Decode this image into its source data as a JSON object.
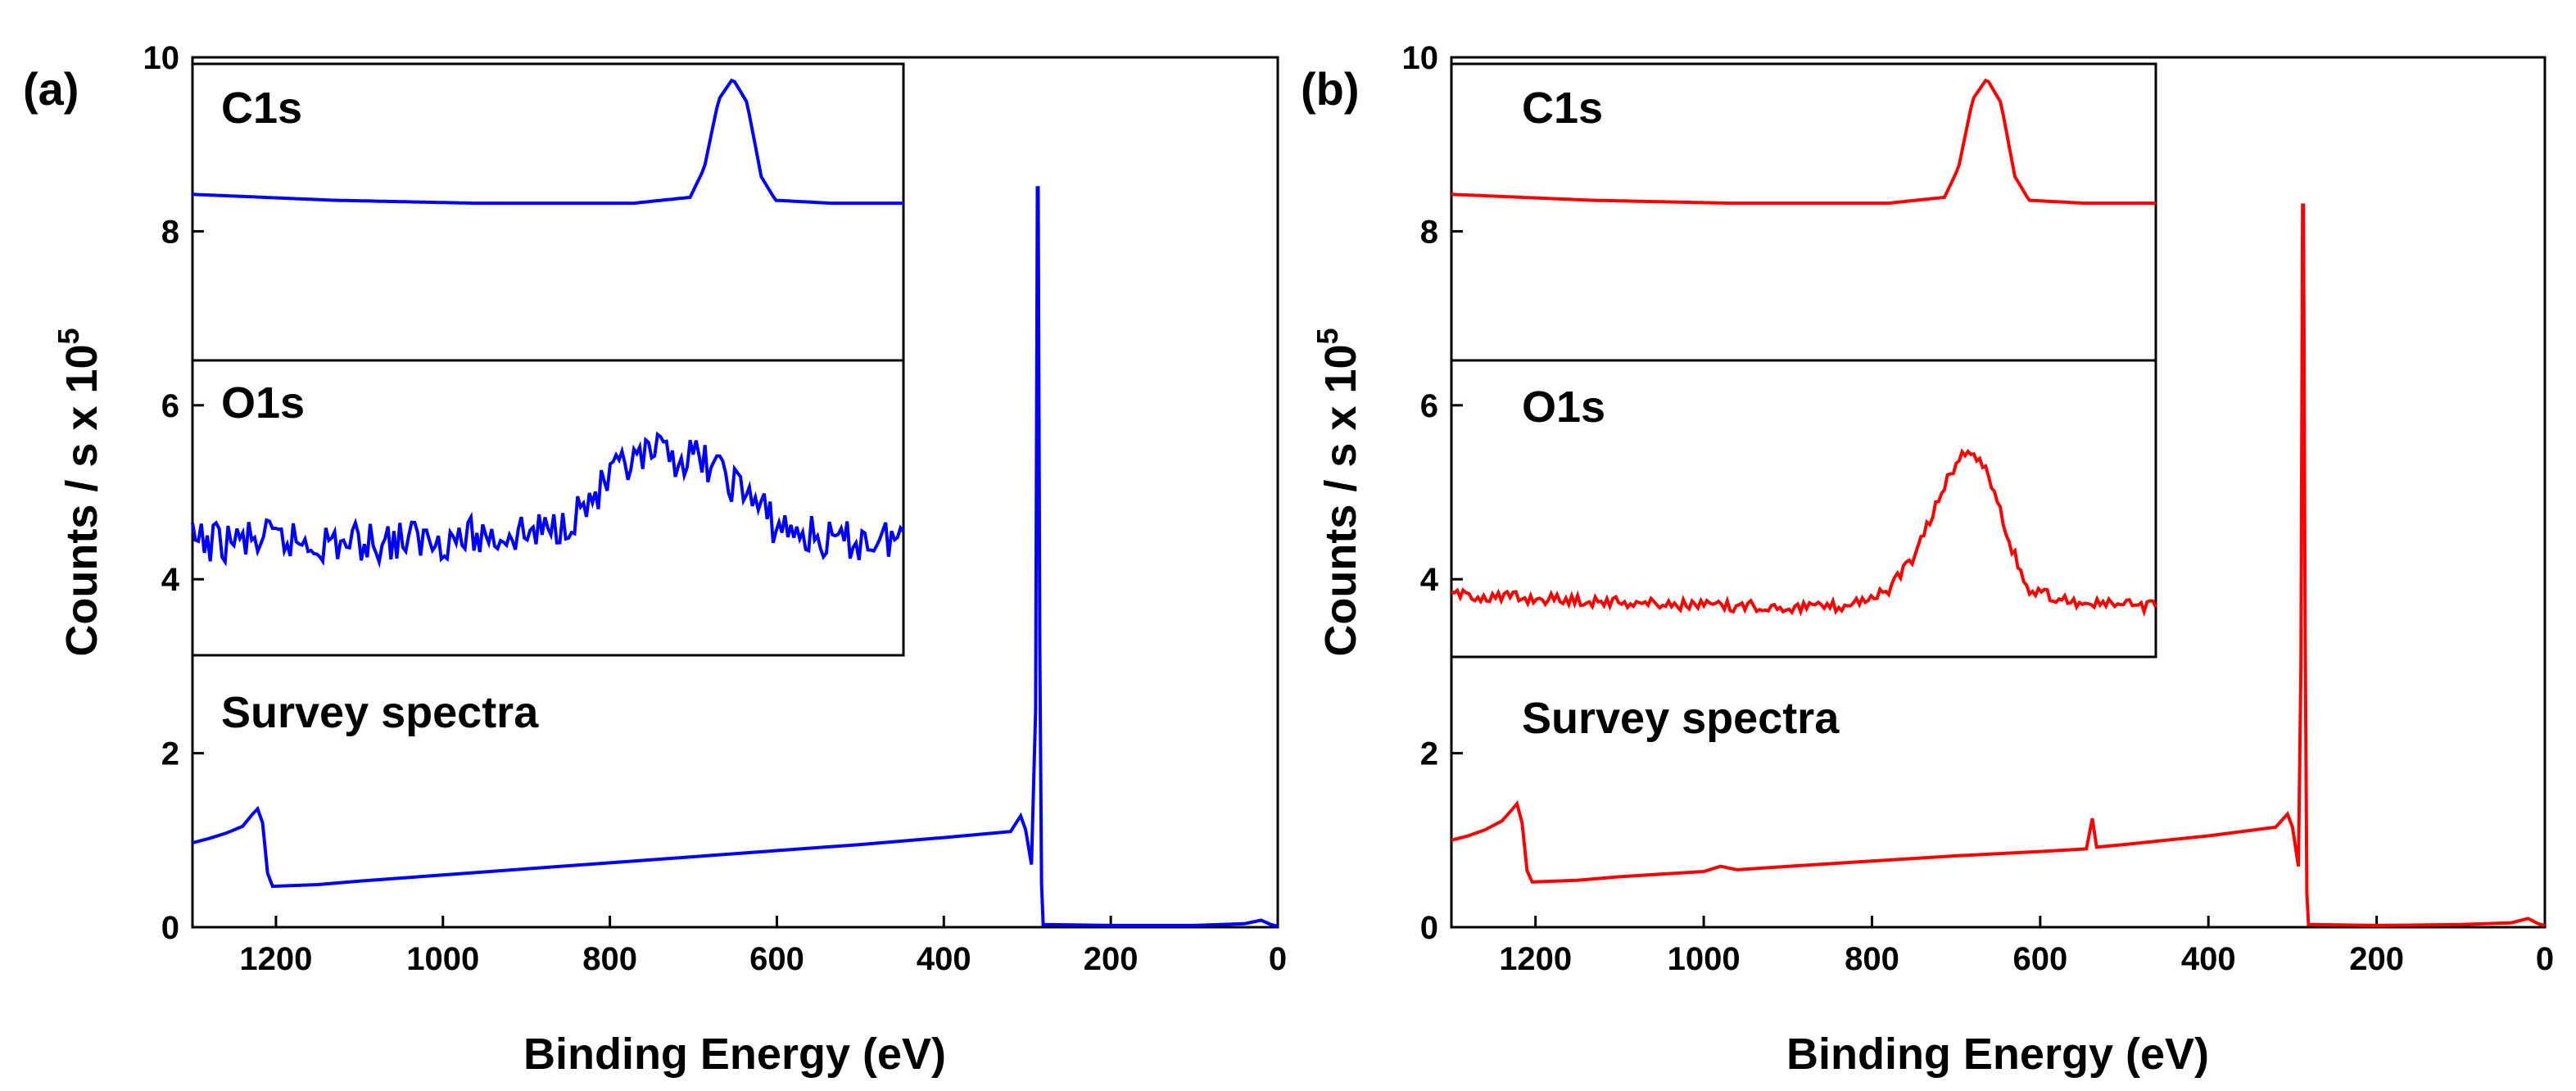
{
  "chart_data": [
    {
      "type": "line",
      "panel_tag": "(a)",
      "color": "#0000FF",
      "xlabel": "Binding Energy (eV)",
      "ylabel_main": "Counts / s x 10",
      "ylabel_sup": "5",
      "xlim": [
        1300,
        0
      ],
      "ylim": [
        0,
        10
      ],
      "xticks": [
        "1200",
        "1000",
        "800",
        "600",
        "400",
        "200",
        "0"
      ],
      "yticks": [
        "0",
        "2",
        "4",
        "6",
        "8",
        "10"
      ],
      "series_label": "Survey spectra",
      "series": [
        {
          "name": "Survey spectra",
          "points": [
            [
              1300,
              0.97
            ],
            [
              1280,
              1.02
            ],
            [
              1260,
              1.08
            ],
            [
              1240,
              1.16
            ],
            [
              1228,
              1.3
            ],
            [
              1222,
              1.36
            ],
            [
              1216,
              1.2
            ],
            [
              1210,
              0.62
            ],
            [
              1204,
              0.47
            ],
            [
              1150,
              0.49
            ],
            [
              1100,
              0.53
            ],
            [
              1000,
              0.6
            ],
            [
              900,
              0.67
            ],
            [
              800,
              0.74
            ],
            [
              700,
              0.81
            ],
            [
              600,
              0.88
            ],
            [
              500,
              0.95
            ],
            [
              400,
              1.03
            ],
            [
              320,
              1.1
            ],
            [
              308,
              1.28
            ],
            [
              302,
              1.12
            ],
            [
              295,
              0.72
            ],
            [
              290,
              2.5
            ],
            [
              288,
              8.5
            ],
            [
              287,
              8.5
            ],
            [
              285,
              3.2
            ],
            [
              283,
              0.5
            ],
            [
              281,
              0.03
            ],
            [
              200,
              0.02
            ],
            [
              100,
              0.02
            ],
            [
              40,
              0.04
            ],
            [
              20,
              0.08
            ],
            [
              8,
              0.03
            ],
            [
              0,
              0.01
            ]
          ]
        }
      ],
      "insets": [
        {
          "label": "C1s",
          "x_frac": [
            0,
            1
          ],
          "y_frac": [
            0,
            1
          ],
          "points": [
            [
              0,
              0.44
            ],
            [
              0.2,
              0.46
            ],
            [
              0.4,
              0.47
            ],
            [
              0.62,
              0.47
            ],
            [
              0.7,
              0.45
            ],
            [
              0.72,
              0.35
            ],
            [
              0.74,
              0.12
            ],
            [
              0.76,
              0.05
            ],
            [
              0.78,
              0.13
            ],
            [
              0.8,
              0.38
            ],
            [
              0.82,
              0.46
            ],
            [
              0.9,
              0.47
            ],
            [
              1,
              0.47
            ]
          ]
        },
        {
          "label": "O1s",
          "noise": 0.07,
          "points": [
            [
              0,
              0.62
            ],
            [
              0.1,
              0.61
            ],
            [
              0.2,
              0.62
            ],
            [
              0.3,
              0.61
            ],
            [
              0.4,
              0.6
            ],
            [
              0.5,
              0.58
            ],
            [
              0.55,
              0.5
            ],
            [
              0.6,
              0.38
            ],
            [
              0.65,
              0.32
            ],
            [
              0.72,
              0.34
            ],
            [
              0.78,
              0.45
            ],
            [
              0.82,
              0.56
            ],
            [
              0.9,
              0.62
            ],
            [
              1,
              0.6
            ]
          ]
        }
      ]
    },
    {
      "type": "line",
      "panel_tag": "(b)",
      "color": "#FF0000",
      "xlabel": "Binding Energy (eV)",
      "ylabel_main": "Counts / s x 10",
      "ylabel_sup": "5",
      "xlim": [
        1300,
        0
      ],
      "ylim": [
        0,
        10
      ],
      "xticks": [
        "1200",
        "1000",
        "800",
        "600",
        "400",
        "200",
        "0"
      ],
      "yticks": [
        "0",
        "2",
        "4",
        "6",
        "8",
        "10"
      ],
      "series_label": "Survey spectra",
      "series": [
        {
          "name": "Survey spectra",
          "points": [
            [
              1300,
              1.0
            ],
            [
              1280,
              1.05
            ],
            [
              1260,
              1.12
            ],
            [
              1240,
              1.22
            ],
            [
              1228,
              1.35
            ],
            [
              1222,
              1.42
            ],
            [
              1216,
              1.2
            ],
            [
              1210,
              0.65
            ],
            [
              1204,
              0.52
            ],
            [
              1150,
              0.54
            ],
            [
              1100,
              0.58
            ],
            [
              1000,
              0.64
            ],
            [
              980,
              0.7
            ],
            [
              960,
              0.66
            ],
            [
              900,
              0.7
            ],
            [
              800,
              0.76
            ],
            [
              700,
              0.82
            ],
            [
              600,
              0.87
            ],
            [
              545,
              0.9
            ],
            [
              538,
              1.25
            ],
            [
              533,
              0.92
            ],
            [
              500,
              0.95
            ],
            [
              400,
              1.05
            ],
            [
              320,
              1.15
            ],
            [
              306,
              1.3
            ],
            [
              300,
              1.15
            ],
            [
              293,
              0.7
            ],
            [
              290,
              3.0
            ],
            [
              288,
              8.3
            ],
            [
              287,
              8.3
            ],
            [
              285,
              3.5
            ],
            [
              283,
              0.4
            ],
            [
              281,
              0.03
            ],
            [
              200,
              0.02
            ],
            [
              100,
              0.03
            ],
            [
              40,
              0.05
            ],
            [
              20,
              0.1
            ],
            [
              8,
              0.04
            ],
            [
              0,
              0.02
            ]
          ]
        }
      ],
      "insets": [
        {
          "label": "C1s",
          "points": [
            [
              0,
              0.44
            ],
            [
              0.2,
              0.46
            ],
            [
              0.4,
              0.47
            ],
            [
              0.62,
              0.47
            ],
            [
              0.7,
              0.45
            ],
            [
              0.72,
              0.35
            ],
            [
              0.74,
              0.12
            ],
            [
              0.76,
              0.05
            ],
            [
              0.78,
              0.13
            ],
            [
              0.8,
              0.38
            ],
            [
              0.82,
              0.46
            ],
            [
              0.9,
              0.47
            ],
            [
              1,
              0.47
            ]
          ]
        },
        {
          "label": "O1s",
          "noise": 0.02,
          "points": [
            [
              0,
              0.79
            ],
            [
              0.1,
              0.8
            ],
            [
              0.2,
              0.81
            ],
            [
              0.3,
              0.82
            ],
            [
              0.4,
              0.83
            ],
            [
              0.55,
              0.83
            ],
            [
              0.62,
              0.78
            ],
            [
              0.66,
              0.65
            ],
            [
              0.7,
              0.42
            ],
            [
              0.73,
              0.3
            ],
            [
              0.76,
              0.36
            ],
            [
              0.79,
              0.6
            ],
            [
              0.82,
              0.78
            ],
            [
              0.9,
              0.82
            ],
            [
              1,
              0.83
            ]
          ]
        }
      ]
    }
  ]
}
